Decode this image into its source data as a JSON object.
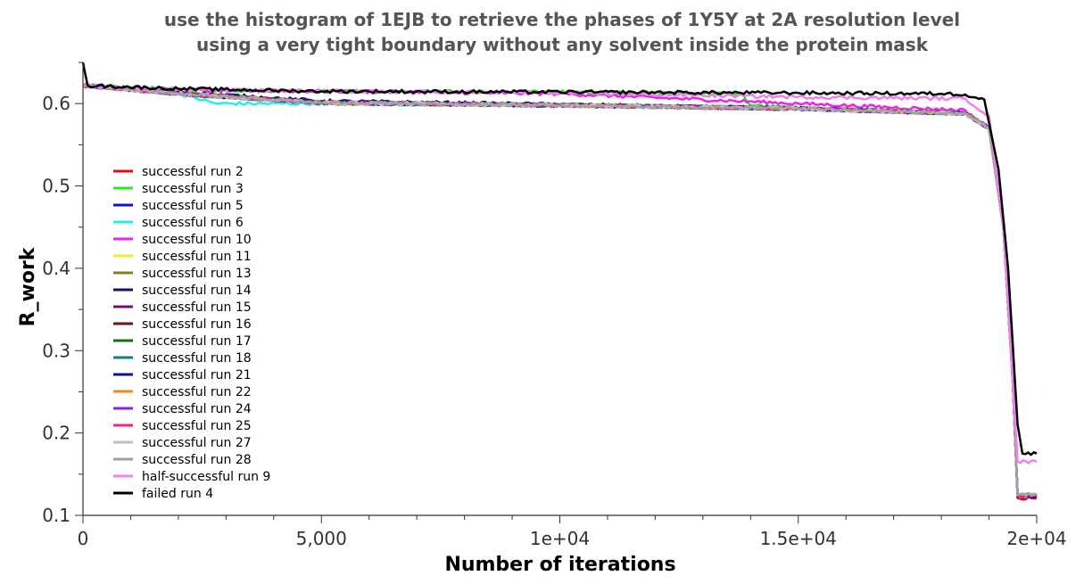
{
  "chart_data": {
    "type": "line",
    "title_line1": "use the histogram of 1EJB to retrieve the phases of 1Y5Y at 2A resolution level",
    "title_line2": "using a very tight boundary without any solvent inside the protein mask",
    "xlabel": "Number of iterations",
    "ylabel": "R_work",
    "xlim": [
      0,
      20000
    ],
    "ylim": [
      0.1,
      0.65
    ],
    "x_ticks": [
      0,
      5000,
      10000,
      15000,
      20000
    ],
    "x_tick_labels": [
      "0",
      "5,000",
      "1e+04",
      "1.5e+04",
      "2e+04"
    ],
    "y_ticks": [
      0.1,
      0.2,
      0.3,
      0.4,
      0.5,
      0.6
    ],
    "y_tick_labels": [
      "0.1",
      "0.2",
      "0.3",
      "0.4",
      "0.5",
      "0.6"
    ],
    "grid": false,
    "legend_position": "left",
    "series": [
      {
        "name": "successful run 2",
        "color": "#e01010",
        "points": [
          [
            0,
            0.622
          ],
          [
            2000,
            0.612
          ],
          [
            5000,
            0.602
          ],
          [
            10000,
            0.598
          ],
          [
            15000,
            0.594
          ],
          [
            18500,
            0.588
          ],
          [
            19000,
            0.57
          ],
          [
            19300,
            0.45
          ],
          [
            19500,
            0.26
          ],
          [
            19600,
            0.121
          ],
          [
            20000,
            0.121
          ]
        ]
      },
      {
        "name": "successful run 3",
        "color": "#22ee22",
        "points": [
          [
            0,
            0.622
          ],
          [
            2000,
            0.617
          ],
          [
            5000,
            0.615
          ],
          [
            10000,
            0.614
          ],
          [
            13800,
            0.612
          ],
          [
            14000,
            0.598
          ],
          [
            15000,
            0.594
          ],
          [
            18500,
            0.588
          ],
          [
            19000,
            0.57
          ],
          [
            19300,
            0.45
          ],
          [
            19500,
            0.26
          ],
          [
            19600,
            0.124
          ],
          [
            20000,
            0.124
          ]
        ]
      },
      {
        "name": "successful run 5",
        "color": "#1010d0",
        "points": [
          [
            0,
            0.622
          ],
          [
            2000,
            0.612
          ],
          [
            5000,
            0.601
          ],
          [
            10000,
            0.598
          ],
          [
            15000,
            0.594
          ],
          [
            18500,
            0.588
          ],
          [
            19000,
            0.57
          ],
          [
            19300,
            0.45
          ],
          [
            19500,
            0.26
          ],
          [
            19600,
            0.123
          ],
          [
            20000,
            0.123
          ]
        ]
      },
      {
        "name": "successful run 6",
        "color": "#22eeee",
        "points": [
          [
            0,
            0.622
          ],
          [
            2000,
            0.612
          ],
          [
            2800,
            0.6
          ],
          [
            5000,
            0.6
          ],
          [
            10000,
            0.598
          ],
          [
            15000,
            0.594
          ],
          [
            18500,
            0.588
          ],
          [
            19000,
            0.57
          ],
          [
            19300,
            0.45
          ],
          [
            19500,
            0.26
          ],
          [
            19600,
            0.124
          ],
          [
            20000,
            0.124
          ]
        ]
      },
      {
        "name": "successful run 10",
        "color": "#ee22ee",
        "points": [
          [
            0,
            0.622
          ],
          [
            2000,
            0.616
          ],
          [
            5000,
            0.615
          ],
          [
            10000,
            0.612
          ],
          [
            15000,
            0.6
          ],
          [
            18500,
            0.592
          ],
          [
            19000,
            0.57
          ],
          [
            19300,
            0.45
          ],
          [
            19500,
            0.26
          ],
          [
            19600,
            0.124
          ],
          [
            20000,
            0.124
          ]
        ]
      },
      {
        "name": "successful run 11",
        "color": "#eeee22",
        "points": [
          [
            0,
            0.622
          ],
          [
            2000,
            0.612
          ],
          [
            5000,
            0.601
          ],
          [
            10000,
            0.598
          ],
          [
            15000,
            0.594
          ],
          [
            18500,
            0.588
          ],
          [
            19000,
            0.57
          ],
          [
            19300,
            0.45
          ],
          [
            19500,
            0.26
          ],
          [
            19600,
            0.124
          ],
          [
            20000,
            0.124
          ]
        ]
      },
      {
        "name": "successful run 13",
        "color": "#808020",
        "points": [
          [
            0,
            0.622
          ],
          [
            2000,
            0.612
          ],
          [
            5000,
            0.601
          ],
          [
            10000,
            0.598
          ],
          [
            15000,
            0.594
          ],
          [
            18500,
            0.588
          ],
          [
            19000,
            0.57
          ],
          [
            19300,
            0.45
          ],
          [
            19500,
            0.26
          ],
          [
            19600,
            0.124
          ],
          [
            20000,
            0.124
          ]
        ]
      },
      {
        "name": "successful run 14",
        "color": "#101070",
        "points": [
          [
            0,
            0.622
          ],
          [
            2000,
            0.614
          ],
          [
            5000,
            0.603
          ],
          [
            10000,
            0.599
          ],
          [
            15000,
            0.594
          ],
          [
            18500,
            0.588
          ],
          [
            19000,
            0.57
          ],
          [
            19300,
            0.45
          ],
          [
            19500,
            0.26
          ],
          [
            19600,
            0.124
          ],
          [
            20000,
            0.124
          ]
        ]
      },
      {
        "name": "successful run 15",
        "color": "#701070",
        "points": [
          [
            0,
            0.622
          ],
          [
            2000,
            0.612
          ],
          [
            5000,
            0.601
          ],
          [
            10000,
            0.598
          ],
          [
            15000,
            0.594
          ],
          [
            18500,
            0.588
          ],
          [
            19000,
            0.57
          ],
          [
            19300,
            0.45
          ],
          [
            19500,
            0.26
          ],
          [
            19600,
            0.124
          ],
          [
            20000,
            0.124
          ]
        ]
      },
      {
        "name": "successful run 16",
        "color": "#701010",
        "points": [
          [
            0,
            0.622
          ],
          [
            2000,
            0.612
          ],
          [
            5000,
            0.601
          ],
          [
            10000,
            0.598
          ],
          [
            15000,
            0.594
          ],
          [
            18500,
            0.588
          ],
          [
            19000,
            0.57
          ],
          [
            19300,
            0.45
          ],
          [
            19500,
            0.26
          ],
          [
            19600,
            0.124
          ],
          [
            20000,
            0.124
          ]
        ]
      },
      {
        "name": "successful run 17",
        "color": "#107010",
        "points": [
          [
            0,
            0.622
          ],
          [
            2000,
            0.612
          ],
          [
            5000,
            0.601
          ],
          [
            10000,
            0.598
          ],
          [
            15000,
            0.594
          ],
          [
            18500,
            0.588
          ],
          [
            19000,
            0.57
          ],
          [
            19300,
            0.45
          ],
          [
            19500,
            0.26
          ],
          [
            19600,
            0.124
          ],
          [
            20000,
            0.124
          ]
        ]
      },
      {
        "name": "successful run 18",
        "color": "#108080",
        "points": [
          [
            0,
            0.622
          ],
          [
            2000,
            0.612
          ],
          [
            5000,
            0.601
          ],
          [
            10000,
            0.598
          ],
          [
            15000,
            0.594
          ],
          [
            18500,
            0.588
          ],
          [
            19000,
            0.57
          ],
          [
            19300,
            0.45
          ],
          [
            19500,
            0.26
          ],
          [
            19600,
            0.124
          ],
          [
            20000,
            0.124
          ]
        ]
      },
      {
        "name": "successful run 21",
        "color": "#101090",
        "points": [
          [
            0,
            0.622
          ],
          [
            2000,
            0.612
          ],
          [
            5000,
            0.601
          ],
          [
            10000,
            0.598
          ],
          [
            15000,
            0.594
          ],
          [
            18500,
            0.588
          ],
          [
            19000,
            0.57
          ],
          [
            19300,
            0.45
          ],
          [
            19500,
            0.26
          ],
          [
            19600,
            0.124
          ],
          [
            20000,
            0.124
          ]
        ]
      },
      {
        "name": "successful run 22",
        "color": "#ee8822",
        "points": [
          [
            0,
            0.622
          ],
          [
            2000,
            0.612
          ],
          [
            5000,
            0.601
          ],
          [
            10000,
            0.598
          ],
          [
            15000,
            0.594
          ],
          [
            18500,
            0.588
          ],
          [
            19000,
            0.57
          ],
          [
            19300,
            0.45
          ],
          [
            19500,
            0.26
          ],
          [
            19600,
            0.124
          ],
          [
            20000,
            0.124
          ]
        ]
      },
      {
        "name": "successful run 24",
        "color": "#8822ee",
        "points": [
          [
            0,
            0.622
          ],
          [
            2000,
            0.612
          ],
          [
            5000,
            0.601
          ],
          [
            10000,
            0.598
          ],
          [
            15000,
            0.594
          ],
          [
            18500,
            0.588
          ],
          [
            19000,
            0.57
          ],
          [
            19300,
            0.45
          ],
          [
            19500,
            0.26
          ],
          [
            19600,
            0.124
          ],
          [
            20000,
            0.124
          ]
        ]
      },
      {
        "name": "successful run 25",
        "color": "#ee2288",
        "points": [
          [
            0,
            0.622
          ],
          [
            2000,
            0.612
          ],
          [
            5000,
            0.601
          ],
          [
            10000,
            0.598
          ],
          [
            15000,
            0.594
          ],
          [
            18500,
            0.588
          ],
          [
            19000,
            0.57
          ],
          [
            19300,
            0.45
          ],
          [
            19500,
            0.26
          ],
          [
            19600,
            0.124
          ],
          [
            20000,
            0.124
          ]
        ]
      },
      {
        "name": "successful run 27",
        "color": "#c0c0c0",
        "points": [
          [
            0,
            0.622
          ],
          [
            2000,
            0.612
          ],
          [
            5000,
            0.601
          ],
          [
            10000,
            0.598
          ],
          [
            15000,
            0.594
          ],
          [
            18500,
            0.588
          ],
          [
            19000,
            0.57
          ],
          [
            19300,
            0.45
          ],
          [
            19500,
            0.26
          ],
          [
            19600,
            0.125
          ],
          [
            20000,
            0.125
          ]
        ]
      },
      {
        "name": "successful run 28",
        "color": "#a0a0a0",
        "points": [
          [
            0,
            0.622
          ],
          [
            2000,
            0.612
          ],
          [
            5000,
            0.601
          ],
          [
            10000,
            0.598
          ],
          [
            15000,
            0.594
          ],
          [
            18500,
            0.588
          ],
          [
            19000,
            0.57
          ],
          [
            19300,
            0.45
          ],
          [
            19500,
            0.26
          ],
          [
            19600,
            0.126
          ],
          [
            20000,
            0.126
          ]
        ]
      },
      {
        "name": "half-successful run 9",
        "color": "#f080f0",
        "points": [
          [
            0,
            0.622
          ],
          [
            2000,
            0.617
          ],
          [
            5000,
            0.615
          ],
          [
            10000,
            0.613
          ],
          [
            15000,
            0.608
          ],
          [
            18500,
            0.606
          ],
          [
            19000,
            0.585
          ],
          [
            19300,
            0.45
          ],
          [
            19500,
            0.26
          ],
          [
            19600,
            0.165
          ],
          [
            20000,
            0.165
          ]
        ]
      },
      {
        "name": "failed run 4",
        "color": "#000000",
        "points": [
          [
            0,
            0.65
          ],
          [
            100,
            0.622
          ],
          [
            2000,
            0.618
          ],
          [
            5000,
            0.615
          ],
          [
            10000,
            0.614
          ],
          [
            15000,
            0.613
          ],
          [
            18000,
            0.612
          ],
          [
            18500,
            0.611
          ],
          [
            18900,
            0.605
          ],
          [
            19200,
            0.52
          ],
          [
            19400,
            0.4
          ],
          [
            19600,
            0.21
          ],
          [
            19700,
            0.175
          ],
          [
            20000,
            0.175
          ]
        ]
      }
    ]
  }
}
